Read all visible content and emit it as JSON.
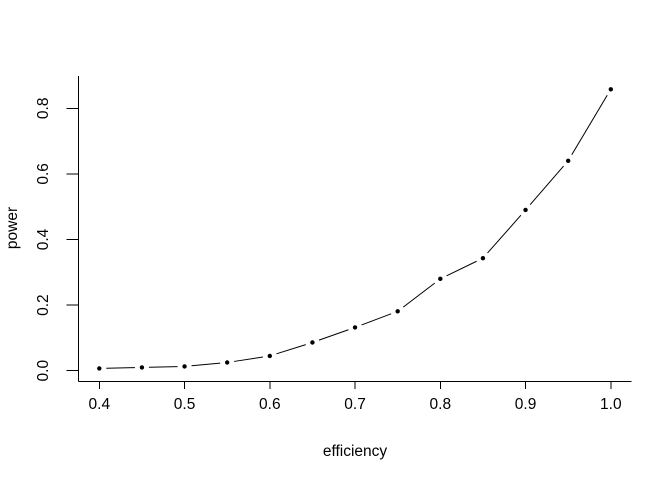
{
  "chart_data": {
    "type": "line",
    "style_note": "base R plot, type='b': filled point markers joined by line segments with gaps around each marker, no grid, no box, L-shaped axes",
    "title": "",
    "xlabel": "efficiency",
    "ylabel": "power",
    "x": [
      0.4,
      0.45,
      0.5,
      0.55,
      0.6,
      0.65,
      0.7,
      0.75,
      0.8,
      0.85,
      0.9,
      0.95,
      1.0
    ],
    "y": [
      0.007,
      0.01,
      0.013,
      0.025,
      0.045,
      0.086,
      0.132,
      0.181,
      0.28,
      0.343,
      0.49,
      0.64,
      0.858
    ],
    "x_axis": {
      "ticks": [
        0.4,
        0.5,
        0.6,
        0.7,
        0.8,
        0.9,
        1.0
      ],
      "tick_labels": [
        "0.4",
        "0.5",
        "0.6",
        "0.7",
        "0.8",
        "0.9",
        "1.0"
      ]
    },
    "y_axis": {
      "ticks": [
        0.0,
        0.2,
        0.4,
        0.6,
        0.8
      ],
      "tick_labels": [
        "0.0",
        "0.2",
        "0.4",
        "0.6",
        "0.8"
      ]
    },
    "xlim": [
      0.376,
      1.025
    ],
    "ylim": [
      -0.034,
      0.898
    ],
    "grid": false,
    "legend": null,
    "marker": "filled-circle",
    "colors": {
      "points": "#000000",
      "line": "#000000",
      "axis": "#000000",
      "text": "#000000",
      "background": "#ffffff"
    }
  }
}
